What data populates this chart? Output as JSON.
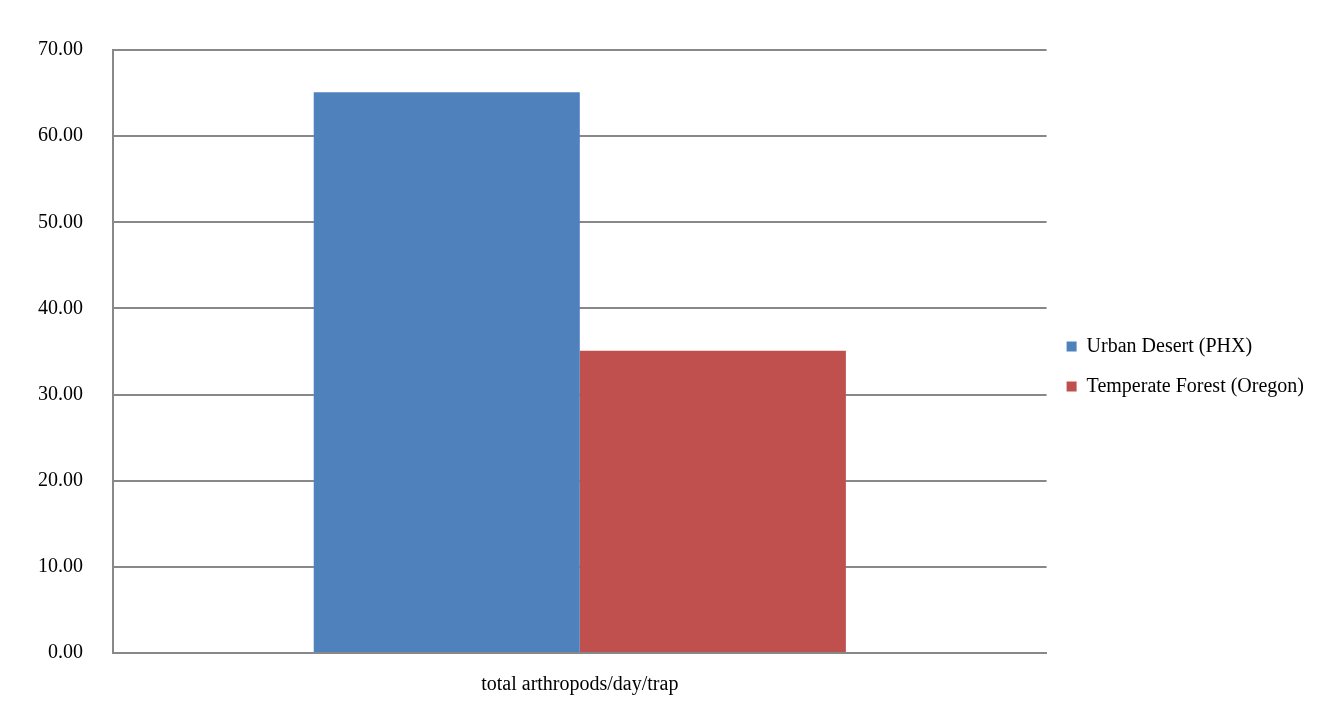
{
  "chart_data": {
    "type": "bar",
    "categories": [
      "total arthropods/day/trap"
    ],
    "series": [
      {
        "name": "Urban Desert (PHX)",
        "color": "#4f81bd",
        "values": [
          65.1
        ]
      },
      {
        "name": "Temperate Forest (Oregon)",
        "color": "#c0504d",
        "values": [
          35.1
        ]
      }
    ],
    "ylim": [
      0,
      70
    ],
    "yticks": [
      {
        "value": 0,
        "label": "0.00"
      },
      {
        "value": 10,
        "label": "10.00"
      },
      {
        "value": 20,
        "label": "20.00"
      },
      {
        "value": 30,
        "label": "30.00"
      },
      {
        "value": 40,
        "label": "40.00"
      },
      {
        "value": 50,
        "label": "50.00"
      },
      {
        "value": 60,
        "label": "60.00"
      },
      {
        "value": 70,
        "label": "70.00"
      }
    ],
    "grid": "y",
    "legend": "right"
  }
}
